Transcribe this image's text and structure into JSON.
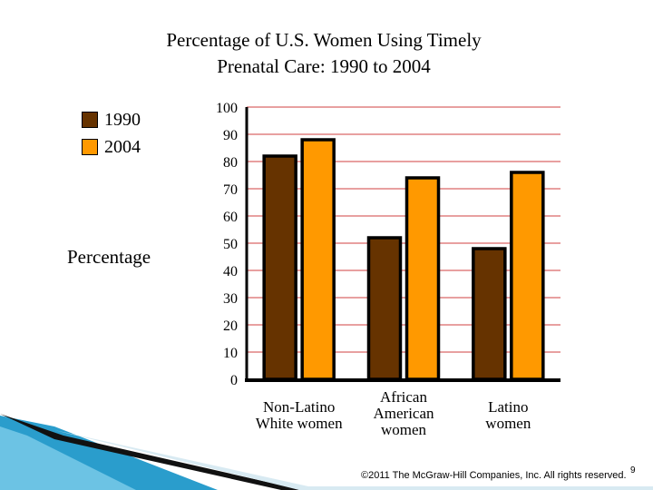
{
  "chart_data": {
    "type": "bar",
    "title_lines": [
      "Percentage of U.S. Women Using Timely",
      "Prenatal Care: 1990 to 2004"
    ],
    "ylabel": "Percentage",
    "ylim": [
      0,
      100
    ],
    "yticks": [
      0,
      10,
      20,
      30,
      40,
      50,
      60,
      70,
      80,
      90,
      100
    ],
    "grid": true,
    "categories": [
      [
        "Non-Latino",
        "White women"
      ],
      [
        "African",
        "American",
        "women"
      ],
      [
        "Latino",
        "women"
      ]
    ],
    "series": [
      {
        "name": "1990",
        "color": "#663300",
        "values": [
          82,
          52,
          48
        ]
      },
      {
        "name": "2004",
        "color": "#ff9900",
        "values": [
          88,
          74,
          76
        ]
      }
    ],
    "legend": [
      "1990",
      "2004"
    ]
  },
  "footer": {
    "copyright": "©2011 The McGraw-Hill Companies, Inc. All rights reserved.",
    "page": "9"
  },
  "colors": {
    "grid": "#d04040",
    "bar_border": "#000000",
    "deco_blue": "#1a8fc0"
  }
}
